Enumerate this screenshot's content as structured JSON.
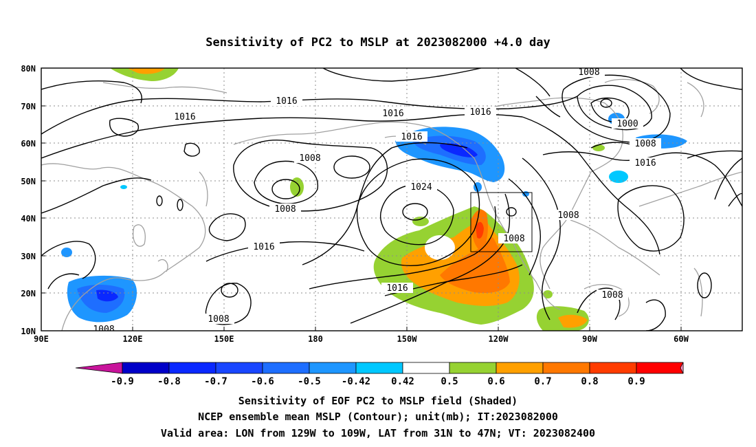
{
  "map": {
    "title": "Sensitivity of PC2 to MSLP at 2023082000 +4.0 day",
    "lon_labels": [
      "90E",
      "120E",
      "150E",
      "180",
      "150W",
      "120W",
      "90W",
      "60W"
    ],
    "lat_labels": [
      "80N",
      "70N",
      "60N",
      "50N",
      "40N",
      "30N",
      "20N",
      "10N"
    ],
    "contour_labels": [
      "1016",
      "1016",
      "1016",
      "1016",
      "1008",
      "1000",
      "1008",
      "1016",
      "1016",
      "1008",
      "1008",
      "1024",
      "1008",
      "1008",
      "1016",
      "1016",
      "1008",
      "1008",
      "1008"
    ],
    "valid_area_box": {
      "lon": [
        "129W",
        "109W"
      ],
      "lat": [
        "31N",
        "47N"
      ]
    }
  },
  "colorbar": {
    "labels": [
      "-0.9",
      "-0.8",
      "-0.7",
      "-0.6",
      "-0.5",
      "-0.42",
      "0.42",
      "0.5",
      "0.6",
      "0.7",
      "0.8",
      "0.9"
    ],
    "colors": [
      "#0000c8",
      "#0a28ff",
      "#1946ff",
      "#1e6eff",
      "#1e96ff",
      "#00c8ff",
      "#ffffff",
      "#96d232",
      "#ffa000",
      "#ff7800",
      "#ff3c00",
      "#ff0000"
    ],
    "low_extend_color": "#c8149b",
    "high_extend_color": "#ff9bc8"
  },
  "caption": {
    "line1": "Sensitivity of EOF PC2 to MSLP field (Shaded)",
    "line2": "NCEP ensemble mean MSLP (Contour); unit(mb); IT:2023082000",
    "line3": "Valid area: LON from 129W to 109W, LAT from 31N to 47N; VT: 2023082400"
  }
}
